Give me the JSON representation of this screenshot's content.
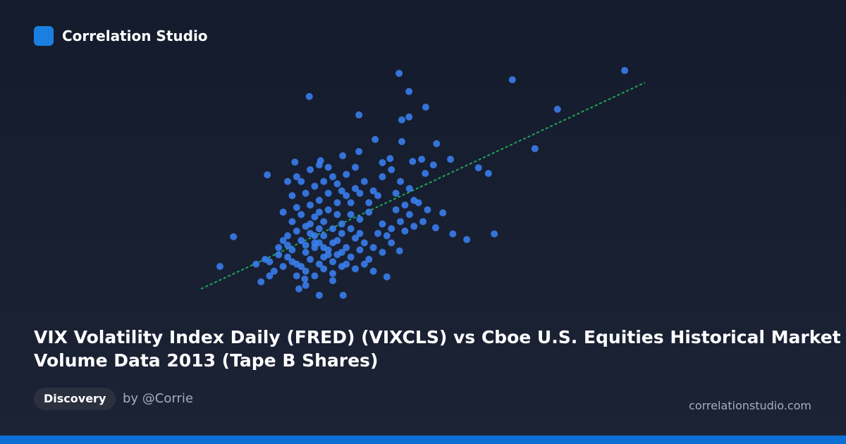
{
  "brand": "Correlation Studio",
  "title_lines": [
    "VIX Volatility Index Daily (FRED) (VIXCLS) vs Cboe U.S. Equities Historical Market",
    "Volume Data 2013 (Tape B Shares)"
  ],
  "tag": "Discovery",
  "author": "by @Corrie",
  "site": "correlationstudio.com",
  "chart_data": {
    "type": "scatter",
    "color": "#3b82f6",
    "xlim": [
      0,
      100
    ],
    "ylim": [
      0,
      100
    ],
    "x": [
      44.7,
      69.8,
      94.7,
      24.8,
      46.9,
      50.6,
      35.8,
      46.9,
      45.3,
      79.8,
      39.4,
      45.3,
      53,
      74.8,
      15.5,
      8,
      5,
      14.1,
      27,
      32.3,
      42,
      54.4,
      52.8,
      56.6,
      59.7,
      65.8,
      64.5,
      62.3,
      56.1,
      21.6,
      27.3,
      32.2,
      35.8,
      42.7,
      47.7,
      49.7,
      52.3,
      50.5,
      44.8,
      23.8,
      22.5,
      20,
      22,
      24,
      26,
      28,
      30,
      23,
      25,
      27,
      29,
      31,
      33,
      21,
      19,
      18,
      17,
      16,
      24,
      26,
      28,
      30,
      32,
      34,
      36,
      35,
      37,
      39,
      38,
      40,
      42,
      41,
      43,
      45,
      44,
      46,
      47,
      48,
      36,
      34,
      32,
      30,
      28,
      26,
      24,
      22,
      20,
      21,
      23,
      25,
      27,
      29,
      31,
      33,
      35,
      37,
      39,
      41,
      43,
      38,
      40,
      29,
      31,
      27,
      25,
      23,
      27,
      29,
      31,
      33,
      35,
      37,
      39,
      41,
      43,
      20,
      18,
      15,
      13,
      16,
      22,
      30,
      24,
      28,
      26,
      32,
      34,
      36,
      22,
      24,
      26,
      28,
      30,
      32,
      34,
      36,
      38,
      23,
      25,
      27,
      47,
      49,
      48,
      46,
      51,
      50,
      44,
      45,
      41,
      33,
      35,
      19,
      21,
      20,
      22,
      29,
      31,
      26,
      24,
      28,
      30,
      32,
      19,
      21,
      25,
      27
    ],
    "y": [
      95.8,
      93.1,
      97,
      86,
      88.1,
      81.5,
      78.2,
      77.3,
      76.1,
      80.6,
      67.8,
      66.9,
      66,
      63.9,
      52.8,
      26.6,
      14,
      7.5,
      1.8,
      1.8,
      9.6,
      36.7,
      30.4,
      27.8,
      25.4,
      27.8,
      53.4,
      55.8,
      59.4,
      58.2,
      58.8,
      60.9,
      62.7,
      59.7,
      58.5,
      59.4,
      57,
      53.4,
      20.6,
      8.7,
      4.5,
      18,
      15,
      20,
      22,
      18,
      16,
      25,
      28,
      24,
      21,
      25,
      22,
      21,
      14,
      19,
      12,
      16,
      12,
      10,
      13,
      11,
      14,
      18,
      21,
      26,
      24,
      22,
      17,
      28,
      27,
      32,
      30,
      33,
      38,
      40,
      36,
      42,
      34,
      36,
      32,
      30,
      33,
      35,
      31,
      29,
      27,
      33,
      36,
      40,
      42,
      45,
      41,
      44,
      47,
      50,
      46,
      52,
      55,
      41,
      44,
      38,
      36,
      30,
      17,
      14,
      15,
      19,
      19,
      15,
      13,
      15,
      12,
      20,
      24,
      23,
      22,
      17,
      15,
      10,
      10,
      8,
      6,
      27,
      27,
      28,
      30,
      28,
      39,
      45,
      48,
      50,
      52,
      46,
      41,
      45,
      37,
      50,
      55,
      57,
      47,
      41,
      31,
      29,
      38,
      33,
      45,
      50,
      58,
      53,
      56,
      37,
      44,
      50,
      52,
      56,
      49,
      24,
      23,
      22,
      24,
      20,
      25,
      16,
      32,
      37
    ],
    "trendline": {
      "color": "#22a55b",
      "x": [
        0.8,
        99.2
      ],
      "y": [
        4.5,
        91.9
      ]
    }
  }
}
